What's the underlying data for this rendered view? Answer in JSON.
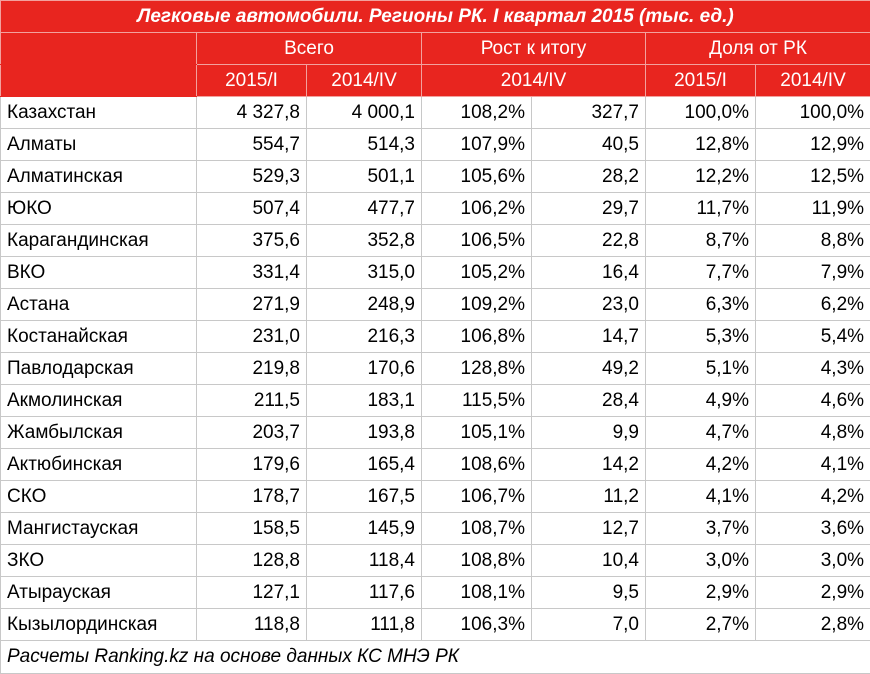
{
  "chart_data": {
    "type": "table",
    "title": "Легковые автомобили. Регионы РК. I квартал 2015 (тыс. ед.)",
    "group_headers": [
      "Всего",
      "Рост к итогу",
      "Доля от РК"
    ],
    "sub_headers": [
      "2015/I",
      "2014/IV",
      "2014/IV",
      "2015/I",
      "2014/IV"
    ],
    "rows": [
      {
        "region": "Казахстан",
        "total_2015_i": "4 327,8",
        "total_2014_iv": "4 000,1",
        "growth_pct": "108,2%",
        "growth_abs": "327,7",
        "share_2015_i": "100,0%",
        "share_2014_iv": "100,0%"
      },
      {
        "region": "Алматы",
        "total_2015_i": "554,7",
        "total_2014_iv": "514,3",
        "growth_pct": "107,9%",
        "growth_abs": "40,5",
        "share_2015_i": "12,8%",
        "share_2014_iv": "12,9%"
      },
      {
        "region": "Алматинская",
        "total_2015_i": "529,3",
        "total_2014_iv": "501,1",
        "growth_pct": "105,6%",
        "growth_abs": "28,2",
        "share_2015_i": "12,2%",
        "share_2014_iv": "12,5%"
      },
      {
        "region": "ЮКО",
        "total_2015_i": "507,4",
        "total_2014_iv": "477,7",
        "growth_pct": "106,2%",
        "growth_abs": "29,7",
        "share_2015_i": "11,7%",
        "share_2014_iv": "11,9%"
      },
      {
        "region": "Карагандинская",
        "total_2015_i": "375,6",
        "total_2014_iv": "352,8",
        "growth_pct": "106,5%",
        "growth_abs": "22,8",
        "share_2015_i": "8,7%",
        "share_2014_iv": "8,8%"
      },
      {
        "region": "ВКО",
        "total_2015_i": "331,4",
        "total_2014_iv": "315,0",
        "growth_pct": "105,2%",
        "growth_abs": "16,4",
        "share_2015_i": "7,7%",
        "share_2014_iv": "7,9%"
      },
      {
        "region": "Астана",
        "total_2015_i": "271,9",
        "total_2014_iv": "248,9",
        "growth_pct": "109,2%",
        "growth_abs": "23,0",
        "share_2015_i": "6,3%",
        "share_2014_iv": "6,2%"
      },
      {
        "region": "Костанайская",
        "total_2015_i": "231,0",
        "total_2014_iv": "216,3",
        "growth_pct": "106,8%",
        "growth_abs": "14,7",
        "share_2015_i": "5,3%",
        "share_2014_iv": "5,4%"
      },
      {
        "region": "Павлодарская",
        "total_2015_i": "219,8",
        "total_2014_iv": "170,6",
        "growth_pct": "128,8%",
        "growth_abs": "49,2",
        "share_2015_i": "5,1%",
        "share_2014_iv": "4,3%"
      },
      {
        "region": "Акмолинская",
        "total_2015_i": "211,5",
        "total_2014_iv": "183,1",
        "growth_pct": "115,5%",
        "growth_abs": "28,4",
        "share_2015_i": "4,9%",
        "share_2014_iv": "4,6%"
      },
      {
        "region": "Жамбылская",
        "total_2015_i": "203,7",
        "total_2014_iv": "193,8",
        "growth_pct": "105,1%",
        "growth_abs": "9,9",
        "share_2015_i": "4,7%",
        "share_2014_iv": "4,8%"
      },
      {
        "region": "Актюбинская",
        "total_2015_i": "179,6",
        "total_2014_iv": "165,4",
        "growth_pct": "108,6%",
        "growth_abs": "14,2",
        "share_2015_i": "4,2%",
        "share_2014_iv": "4,1%"
      },
      {
        "region": "СКО",
        "total_2015_i": "178,7",
        "total_2014_iv": "167,5",
        "growth_pct": "106,7%",
        "growth_abs": "11,2",
        "share_2015_i": "4,1%",
        "share_2014_iv": "4,2%"
      },
      {
        "region": "Мангистауская",
        "total_2015_i": "158,5",
        "total_2014_iv": "145,9",
        "growth_pct": "108,7%",
        "growth_abs": "12,7",
        "share_2015_i": "3,7%",
        "share_2014_iv": "3,6%"
      },
      {
        "region": "ЗКО",
        "total_2015_i": "128,8",
        "total_2014_iv": "118,4",
        "growth_pct": "108,8%",
        "growth_abs": "10,4",
        "share_2015_i": "3,0%",
        "share_2014_iv": "3,0%"
      },
      {
        "region": "Атырауская",
        "total_2015_i": "127,1",
        "total_2014_iv": "117,6",
        "growth_pct": "108,1%",
        "growth_abs": "9,5",
        "share_2015_i": "2,9%",
        "share_2014_iv": "2,9%"
      },
      {
        "region": "Кызылординская",
        "total_2015_i": "118,8",
        "total_2014_iv": "111,8",
        "growth_pct": "106,3%",
        "growth_abs": "7,0",
        "share_2015_i": "2,7%",
        "share_2014_iv": "2,8%"
      }
    ],
    "footnote": "Расчеты Ranking.kz на основе данных КС МНЭ РК"
  },
  "colors": {
    "header_bg": "#e8251f",
    "header_text": "#ffffff",
    "grid": "#c8c8c8"
  }
}
